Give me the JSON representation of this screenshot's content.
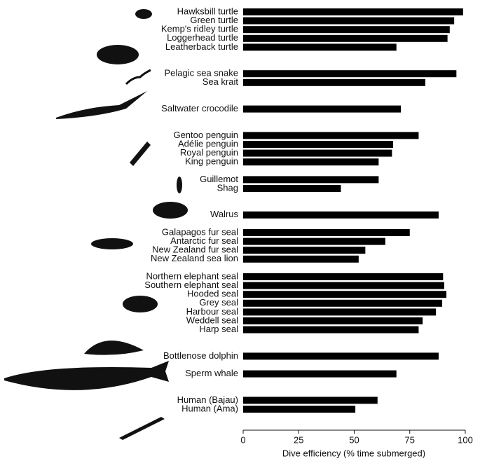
{
  "chart_data": {
    "type": "barh",
    "xlabel": "Dive efficiency (% time submerged)",
    "categories": [
      "Hawksbill turtle",
      "Green turtle",
      "Kemp's ridley turtle",
      "Loggerhead turtle",
      "Leatherback turtle",
      null,
      null,
      "Pelagic sea snake",
      "Sea krait",
      null,
      null,
      "Saltwater crocodile",
      null,
      null,
      "Gentoo penguin",
      "Adélie penguin",
      "Royal penguin",
      "King penguin",
      null,
      "Guillemot",
      "Shag",
      null,
      null,
      "Walrus",
      null,
      "Galapagos fur seal",
      "Antarctic fur seal",
      "New Zealand fur seal",
      "New Zealand sea lion",
      null,
      "Northern elephant seal",
      "Southern elephant seal",
      "Hooded seal",
      "Grey seal",
      "Harbour seal",
      "Weddell seal",
      "Harp seal",
      null,
      null,
      "Bottlenose dolphin",
      null,
      "Sperm whale",
      null,
      null,
      "Human (Bajau)",
      "Human (Ama)"
    ],
    "values": [
      99,
      95,
      93,
      92,
      69,
      null,
      null,
      96,
      82,
      null,
      null,
      71,
      null,
      null,
      79,
      67.5,
      67,
      61,
      null,
      61,
      44,
      null,
      null,
      88,
      null,
      75,
      64,
      55,
      52,
      null,
      90,
      90.5,
      91.5,
      89.6,
      86.8,
      80.8,
      79,
      null,
      null,
      88,
      null,
      69,
      null,
      null,
      60.5,
      50.5
    ],
    "color": "#000000",
    "xlim": [
      0,
      100
    ],
    "xticks": [
      0,
      25,
      50,
      75,
      100
    ]
  }
}
